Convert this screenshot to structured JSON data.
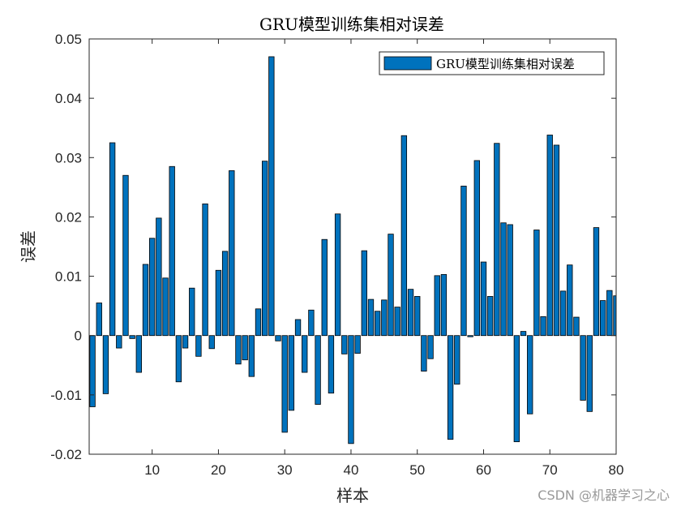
{
  "chart_data": {
    "type": "bar",
    "title": "GRU模型训练集相对误差",
    "xlabel": "样本",
    "ylabel": "误差",
    "xlim": [
      0.5,
      80
    ],
    "ylim": [
      -0.02,
      0.05
    ],
    "xticks": [
      10,
      20,
      30,
      40,
      50,
      60,
      70,
      80
    ],
    "yticks": [
      -0.02,
      -0.01,
      0,
      0.01,
      0.02,
      0.03,
      0.04,
      0.05
    ],
    "ytick_labels": [
      "-0.02",
      "-0.01",
      "0",
      "0.01",
      "0.02",
      "0.03",
      "0.04",
      "0.05"
    ],
    "legend": {
      "entries": [
        "GRU模型训练集相对误差"
      ],
      "location": "top-right"
    },
    "bar_color": "#0072BD",
    "edge_color": "#000000",
    "x": [
      1,
      2,
      3,
      4,
      5,
      6,
      7,
      8,
      9,
      10,
      11,
      12,
      13,
      14,
      15,
      16,
      17,
      18,
      19,
      20,
      21,
      22,
      23,
      24,
      25,
      26,
      27,
      28,
      29,
      30,
      31,
      32,
      33,
      34,
      35,
      36,
      37,
      38,
      39,
      40,
      41,
      42,
      43,
      44,
      45,
      46,
      47,
      48,
      49,
      50,
      51,
      52,
      53,
      54,
      55,
      56,
      57,
      58,
      59,
      60,
      61,
      62,
      63,
      64,
      65,
      66,
      67,
      68,
      69,
      70,
      71,
      72,
      73,
      74,
      75,
      76,
      77,
      78,
      79,
      80
    ],
    "values": [
      -0.012,
      0.0055,
      -0.0098,
      0.0325,
      -0.0021,
      0.027,
      -0.0005,
      -0.0062,
      0.012,
      0.0164,
      0.0198,
      0.0097,
      0.0285,
      -0.0078,
      -0.0021,
      0.008,
      -0.0035,
      0.0222,
      -0.0022,
      0.011,
      0.0142,
      0.0278,
      -0.0048,
      -0.0041,
      -0.0069,
      0.0045,
      0.0294,
      0.047,
      -0.0009,
      -0.0163,
      -0.0126,
      0.0027,
      -0.0062,
      0.0043,
      -0.0116,
      0.0162,
      -0.0097,
      0.0205,
      -0.0031,
      -0.0182,
      -0.003,
      0.0143,
      0.0061,
      0.0041,
      0.006,
      0.0171,
      0.0048,
      0.0337,
      0.0078,
      0.0066,
      -0.006,
      -0.0039,
      0.0101,
      0.0103,
      -0.0175,
      -0.0082,
      0.0252,
      -0.0002,
      0.0295,
      0.0124,
      0.0066,
      0.0324,
      0.019,
      0.0187,
      -0.0179,
      0.0007,
      -0.0132,
      0.0178,
      0.0032,
      0.0338,
      0.0321,
      0.0075,
      0.0119,
      0.0031,
      -0.0109,
      -0.0128,
      0.0182,
      0.0059,
      0.0076,
      0.0067
    ]
  },
  "watermark": "CSDN @机器学习之心"
}
